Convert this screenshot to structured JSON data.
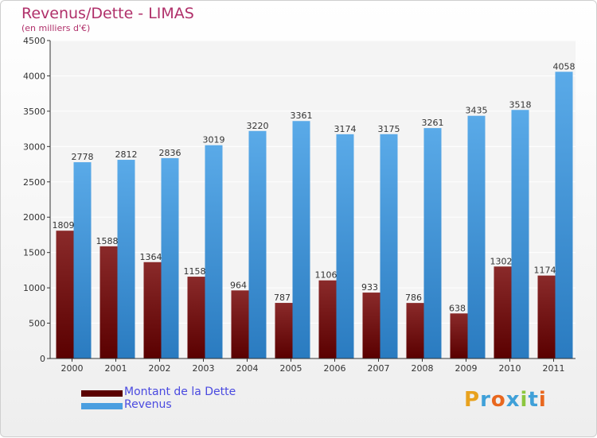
{
  "colors": {
    "debt_dark": "#5a0000",
    "debt_light": "#8a2a2a",
    "revenue_dark": "#2a7bc0",
    "revenue_light": "#5aaae8",
    "title": "#b0306a",
    "legend_text": "#4a4ae0"
  },
  "chart_data": {
    "type": "bar",
    "title": "Revenus/Dette - LIMAS",
    "subtitle": "(en milliers d'€)",
    "categories": [
      "2000",
      "2001",
      "2002",
      "2003",
      "2004",
      "2005",
      "2006",
      "2007",
      "2008",
      "2009",
      "2010",
      "2011"
    ],
    "series": [
      {
        "name": "Montant de la Dette",
        "values": [
          1809,
          1588,
          1364,
          1158,
          964,
          787,
          1106,
          933,
          786,
          638,
          1302,
          1174
        ]
      },
      {
        "name": "Revenus",
        "values": [
          2778,
          2812,
          2836,
          3019,
          3220,
          3361,
          3174,
          3175,
          3261,
          3435,
          3518,
          4058
        ]
      }
    ],
    "yticks": [
      0,
      500,
      1000,
      1500,
      2000,
      2500,
      3000,
      3500,
      4000,
      4500
    ],
    "ylim": [
      0,
      4500
    ],
    "grid": true,
    "legend_position": "bottom-left"
  },
  "logo": {
    "letters": [
      "P",
      "r",
      "o",
      "x",
      "i",
      "t",
      "i"
    ],
    "colors": [
      "#e8a21e",
      "#3fa0d8",
      "#e8671e",
      "#3fa0d8",
      "#8cc63f",
      "#3fa0d8",
      "#e8671e"
    ]
  }
}
